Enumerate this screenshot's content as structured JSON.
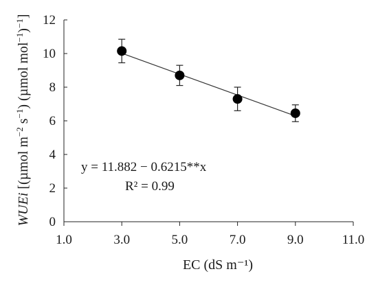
{
  "chart_data": {
    "type": "scatter",
    "xlabel": "EC (dS m⁻¹)",
    "ylabel_parts": [
      {
        "text": "WUEi",
        "italic": true
      },
      {
        "text": " [(µmol m",
        "italic": false
      },
      {
        "text": "−2",
        "italic": false,
        "sup": true
      },
      {
        "text": " s",
        "italic": false
      },
      {
        "text": "−1",
        "italic": false,
        "sup": true
      },
      {
        "text": ") (µmol mol",
        "italic": false
      },
      {
        "text": "−1",
        "italic": false,
        "sup": true
      },
      {
        "text": ")",
        "italic": false
      },
      {
        "text": "−1",
        "italic": false,
        "sup": true
      },
      {
        "text": "]",
        "italic": false
      }
    ],
    "xlim": [
      1.0,
      11.0
    ],
    "ylim": [
      0,
      12
    ],
    "x_ticks": [
      1.0,
      3.0,
      5.0,
      7.0,
      9.0,
      11.0
    ],
    "x_tick_labels": [
      "1.0",
      "3.0",
      "5.0",
      "7.0",
      "9.0",
      "11.0"
    ],
    "y_ticks": [
      0,
      2,
      4,
      6,
      8,
      10,
      12
    ],
    "y_tick_labels": [
      "0",
      "2",
      "4",
      "6",
      "8",
      "10",
      "12"
    ],
    "grid": false,
    "points": [
      {
        "x": 3.0,
        "y": 10.15,
        "err": 0.7
      },
      {
        "x": 5.0,
        "y": 8.7,
        "err": 0.6
      },
      {
        "x": 7.0,
        "y": 7.3,
        "err": 0.7
      },
      {
        "x": 9.0,
        "y": 6.45,
        "err": 0.5
      }
    ],
    "fit": {
      "intercept": 11.882,
      "slope": -0.6215,
      "x_range": [
        3.0,
        9.0
      ]
    },
    "annotations": {
      "equation": "y = 11.882 − 0.6215**x",
      "r2": "R² = 0.99"
    }
  }
}
